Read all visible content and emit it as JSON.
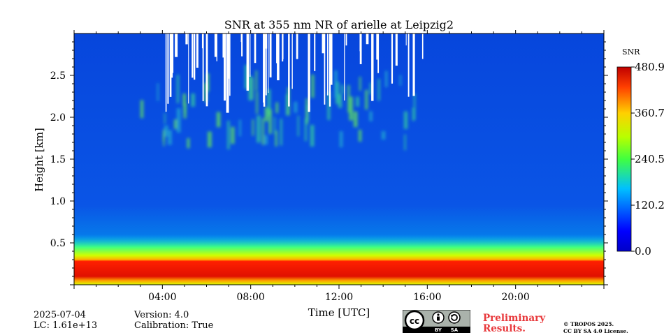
{
  "chart_data": {
    "type": "heatmap",
    "title": "SNR at 355 nm NR of arielle at Leipzig2",
    "xlabel": "Time [UTC]",
    "ylabel": "Height [km]",
    "x_range_hours": [
      0,
      24
    ],
    "y_range_km": [
      0,
      3.0
    ],
    "x_ticks": [
      {
        "value": 4,
        "label": "04:00"
      },
      {
        "value": 8,
        "label": "08:00"
      },
      {
        "value": 12,
        "label": "12:00"
      },
      {
        "value": 16,
        "label": "16:00"
      },
      {
        "value": 20,
        "label": "20:00"
      }
    ],
    "y_ticks": [
      {
        "value": 0.5,
        "label": "0.5"
      },
      {
        "value": 1.0,
        "label": "1.0"
      },
      {
        "value": 1.5,
        "label": "1.5"
      },
      {
        "value": 2.0,
        "label": "2.0"
      },
      {
        "value": 2.5,
        "label": "2.5"
      }
    ],
    "colorbar": {
      "label": "SNR",
      "range": [
        0.0,
        480.9
      ],
      "ticks": [
        {
          "value": 0.0,
          "label": "0.0"
        },
        {
          "value": 120.2,
          "label": "120.2"
        },
        {
          "value": 240.5,
          "label": "240.5"
        },
        {
          "value": 360.7,
          "label": "360.7"
        },
        {
          "value": 480.9,
          "label": "480.9"
        }
      ]
    },
    "features": {
      "near_surface_max_km": [
        0.1,
        0.28
      ],
      "near_surface_snr": 470,
      "boundary_layer_top_km": 0.6,
      "cloud_layer_km": [
        1.5,
        2.3
      ],
      "masked_gaps_hours": [
        4.05,
        15.95
      ]
    }
  },
  "meta": {
    "date": "2025-07-04",
    "lc": "LC: 1.61e+13",
    "version": "Version: 4.0",
    "calibration": "Calibration: True",
    "preliminary_line1": "Preliminary",
    "preliminary_line2": "Results.",
    "copyright_line1": "© TROPOS 2025.",
    "copyright_line2": "CC BY SA 4.0 License.",
    "cc_badge": {
      "cc": "cc",
      "by": "BY",
      "sa": "SA"
    }
  }
}
